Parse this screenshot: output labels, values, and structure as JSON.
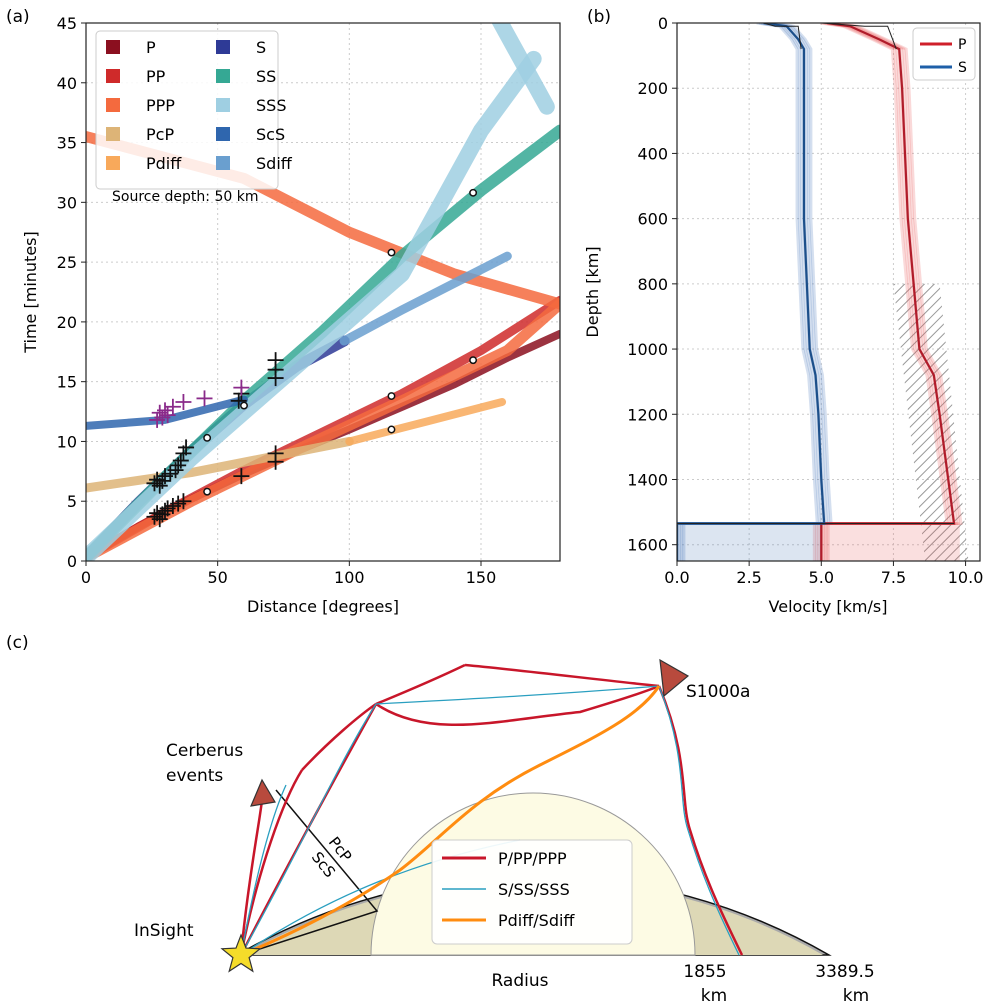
{
  "panel_labels": [
    "(a)",
    "(b)",
    "(c)"
  ],
  "colors": {
    "P": "#8b0f1f",
    "PP": "#cf2a2a",
    "PPP": "#f46a3e",
    "PcP": "#ddb477",
    "Pdiff": "#f8a95b",
    "S": "#2e3a96",
    "SS": "#35a894",
    "SSS": "#9fcfe2",
    "ScS": "#2f66ae",
    "Sdiff": "#6a9fcf",
    "pick_purple": "#8a2a8a",
    "mantle": "#ddd8b6",
    "core": "#fdfbe4",
    "crust": "#aaaaaa",
    "ray_P": "#c8162a",
    "ray_S": "#2a9fc0",
    "ray_diff": "#ff8c10",
    "station": "#b84a3d",
    "insight": "#f5dc2a"
  },
  "chart_data": [
    {
      "type": "line",
      "title": "",
      "xlabel": "Distance [degrees]",
      "ylabel": "Time [minutes]",
      "xlim": [
        0,
        180
      ],
      "ylim": [
        0,
        45
      ],
      "xticks": [
        0,
        50,
        100,
        150
      ],
      "yticks": [
        0,
        5,
        10,
        15,
        20,
        25,
        30,
        35,
        40,
        45
      ],
      "grid": true,
      "legend_position": "top-left",
      "annotation": "Source depth: 50 km",
      "series": [
        {
          "name": "P",
          "x": [
            0,
            20,
            40,
            60,
            80,
            100,
            120,
            140,
            160,
            180
          ],
          "y": [
            0.3,
            2.9,
            5.2,
            7.3,
            9.2,
            11.0,
            12.9,
            14.8,
            17.0,
            19.0
          ]
        },
        {
          "name": "PP",
          "x": [
            0,
            30,
            60,
            90,
            120,
            150,
            180
          ],
          "y": [
            0.3,
            4.1,
            7.6,
            10.8,
            14.0,
            17.6,
            21.8
          ]
        },
        {
          "name": "PPP",
          "x": [
            0,
            40,
            80,
            120,
            160,
            180
          ],
          "y": [
            0.3,
            5.0,
            9.3,
            13.4,
            17.6,
            21.5
          ]
        },
        {
          "name": "PPP",
          "x": [
            0,
            60,
            100,
            140,
            180
          ],
          "y": [
            35.5,
            32.0,
            27.5,
            24.0,
            21.5
          ]
        },
        {
          "name": "PcP",
          "x": [
            0,
            40,
            100
          ],
          "y": [
            6.1,
            7.4,
            10.0
          ]
        },
        {
          "name": "Pdiff",
          "x": [
            100,
            130,
            158
          ],
          "y": [
            10.0,
            11.7,
            13.3
          ]
        },
        {
          "name": "S",
          "x": [
            0,
            20,
            40,
            60,
            80,
            98
          ],
          "y": [
            0.3,
            4.9,
            9.2,
            13.1,
            16.3,
            18.4
          ]
        },
        {
          "name": "SS",
          "x": [
            0,
            30,
            60,
            90,
            120,
            150,
            180
          ],
          "y": [
            0.3,
            7.0,
            13.4,
            19.2,
            25.5,
            31.0,
            36.0
          ]
        },
        {
          "name": "SSS",
          "x": [
            0,
            40,
            80,
            120,
            150,
            170
          ],
          "y": [
            0.3,
            8.6,
            16.3,
            24.0,
            36.0,
            42.0
          ]
        },
        {
          "name": "SSS",
          "x": [
            155,
            170,
            175
          ],
          "y": [
            46.0,
            40.0,
            38.0
          ]
        },
        {
          "name": "ScS",
          "x": [
            0,
            30,
            60
          ],
          "y": [
            11.3,
            11.8,
            13.5
          ]
        },
        {
          "name": "Sdiff",
          "x": [
            98,
            120,
            160
          ],
          "y": [
            18.4,
            21.0,
            25.5
          ]
        }
      ],
      "legend": [
        "P",
        "PP",
        "PPP",
        "PcP",
        "Pdiff",
        "S",
        "SS",
        "SSS",
        "ScS",
        "Sdiff"
      ],
      "picks_black": [
        [
          26,
          3.7
        ],
        [
          27,
          4.0
        ],
        [
          28,
          3.5
        ],
        [
          29,
          3.9
        ],
        [
          30,
          4.2
        ],
        [
          31,
          4.4
        ],
        [
          33,
          4.6
        ],
        [
          35,
          4.8
        ],
        [
          37,
          5.0
        ],
        [
          59,
          7.1
        ],
        [
          72,
          8.3
        ],
        [
          72,
          9.0
        ],
        [
          26,
          6.5
        ],
        [
          27,
          6.8
        ],
        [
          28,
          6.3
        ],
        [
          29,
          6.7
        ],
        [
          30,
          7.1
        ],
        [
          32,
          7.3
        ],
        [
          34,
          7.6
        ],
        [
          35,
          8.0
        ],
        [
          36,
          8.4
        ],
        [
          37,
          9.0
        ],
        [
          38,
          9.5
        ],
        [
          58,
          13.4
        ],
        [
          59,
          14.0
        ],
        [
          72,
          15.3
        ],
        [
          72,
          16.0
        ],
        [
          72,
          16.8
        ]
      ],
      "picks_purple": [
        [
          27,
          11.8
        ],
        [
          28,
          12.4
        ],
        [
          29,
          12.0
        ],
        [
          30,
          12.6
        ],
        [
          31,
          12.2
        ],
        [
          33,
          12.9
        ],
        [
          37,
          13.3
        ],
        [
          45,
          13.6
        ],
        [
          59,
          14.5
        ]
      ],
      "circles": [
        [
          46,
          5.8
        ],
        [
          46,
          10.3
        ],
        [
          60,
          13.0
        ],
        [
          116,
          11.0
        ],
        [
          116,
          13.8
        ],
        [
          116,
          25.8
        ],
        [
          147,
          16.8
        ],
        [
          147,
          30.8
        ]
      ]
    },
    {
      "type": "line",
      "title": "",
      "xlabel": "Velocity [km/s]",
      "ylabel": "Depth [km]",
      "xlim": [
        0,
        10.5
      ],
      "ylim": [
        1650,
        0
      ],
      "xticks": [
        0.0,
        2.5,
        5.0,
        7.5,
        10.0
      ],
      "xtick_labels": [
        "0.0",
        "2.5",
        "5.0",
        "7.5",
        "10.0"
      ],
      "yticks": [
        0,
        200,
        400,
        600,
        800,
        1000,
        1200,
        1400,
        1600
      ],
      "grid": true,
      "legend_position": "top-right",
      "legend": [
        "P",
        "S"
      ],
      "series": [
        {
          "name": "P",
          "depth": [
            0,
            10,
            50,
            80,
            200,
            400,
            600,
            800,
            1000,
            1080,
            1200,
            1400,
            1535,
            1535,
            1650
          ],
          "v": [
            5.2,
            6.0,
            7.0,
            7.7,
            7.8,
            7.9,
            8.0,
            8.2,
            8.4,
            8.9,
            9.1,
            9.4,
            9.6,
            5.0,
            5.0
          ]
        },
        {
          "name": "S",
          "depth": [
            0,
            10,
            50,
            80,
            200,
            400,
            600,
            800,
            1000,
            1080,
            1200,
            1400,
            1535,
            1535,
            1650
          ],
          "v": [
            3.0,
            3.8,
            4.2,
            4.4,
            4.4,
            4.4,
            4.4,
            4.5,
            4.6,
            4.8,
            4.9,
            5.0,
            5.1,
            0.0,
            0.0
          ]
        }
      ],
      "hatched_region": {
        "depth": [
          800,
          1650
        ],
        "v_left": [
          7.5,
          8.6
        ],
        "v_right": [
          8.8,
          10.1
        ]
      }
    }
  ],
  "diagram_c": {
    "labels": {
      "station": "S1000a",
      "cerberus": [
        "Cerberus",
        "events"
      ],
      "insight": "InSight",
      "pcp": "PcP",
      "scs": "ScS",
      "radius": "Radius",
      "core_radius": [
        "1855",
        "km"
      ],
      "planet_radius": [
        "3389.5",
        "km"
      ]
    },
    "legend": [
      "P/PP/PPP",
      "S/SS/SSS",
      "Pdiff/Sdiff"
    ]
  }
}
